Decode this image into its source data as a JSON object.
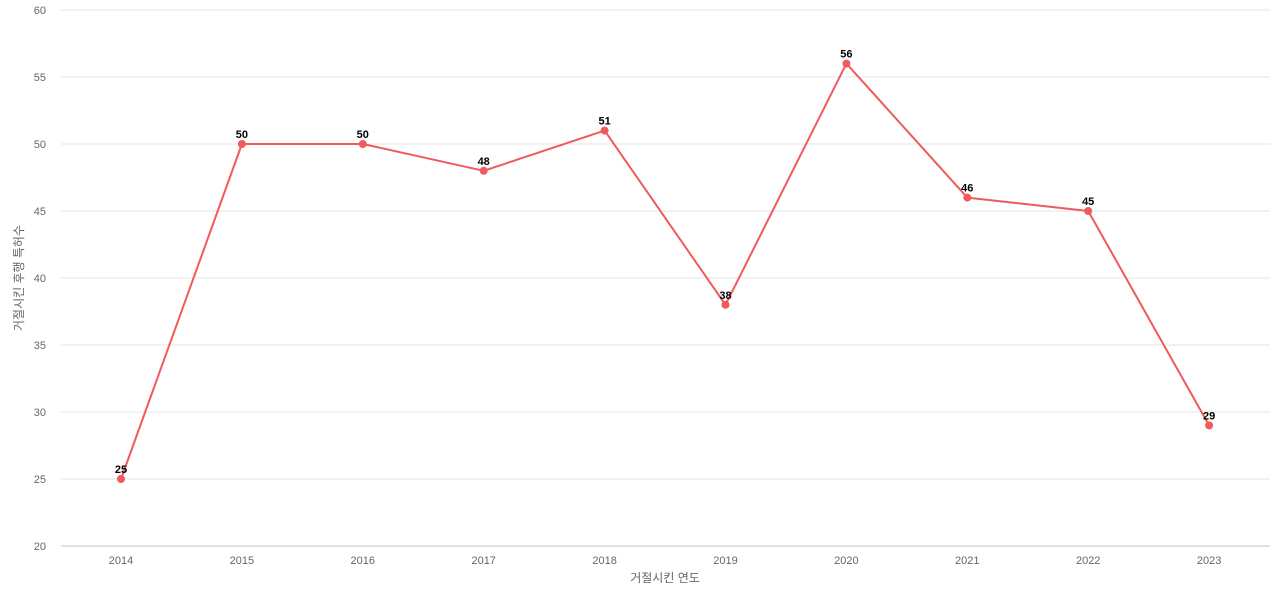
{
  "chart_data": {
    "type": "line",
    "xlabel": "거절시킨 연도",
    "ylabel": "거절시킨 후행 특허수",
    "categories": [
      "2014",
      "2015",
      "2016",
      "2017",
      "2018",
      "2019",
      "2020",
      "2021",
      "2022",
      "2023"
    ],
    "series": [
      {
        "values": [
          25,
          50,
          50,
          48,
          51,
          38,
          56,
          46,
          45,
          29
        ],
        "color": "#f05a5a"
      }
    ],
    "ylim": [
      20,
      60
    ],
    "yticks": [
      20,
      25,
      30,
      35,
      40,
      45,
      50,
      55,
      60
    ],
    "grid": true,
    "data_labels": true
  }
}
